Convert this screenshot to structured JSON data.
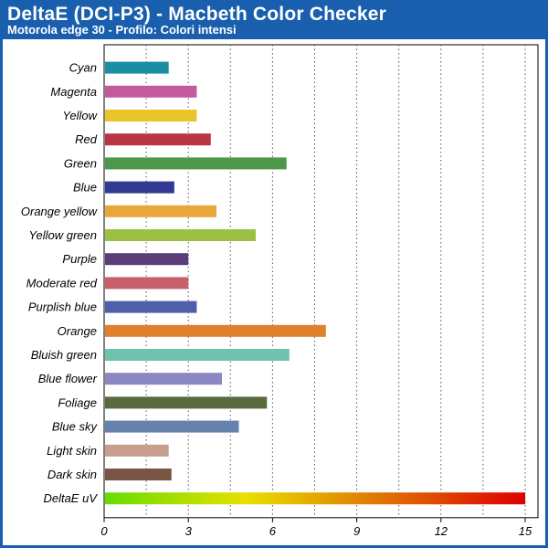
{
  "header": {
    "title": "DeltaE (DCI-P3) - Macbeth Color Checker",
    "subtitle": "Motorola edge 30 - Profilo: Colori intensi"
  },
  "chart_data": {
    "type": "bar",
    "orientation": "horizontal",
    "title": "DeltaE (DCI-P3) - Macbeth Color Checker",
    "subtitle": "Motorola edge 30 - Profilo: Colori intensi",
    "categories": [
      "Cyan",
      "Magenta",
      "Yellow",
      "Red",
      "Green",
      "Blue",
      "Orange yellow",
      "Yellow green",
      "Purple",
      "Moderate red",
      "Purplish blue",
      "Orange",
      "Bluish green",
      "Blue flower",
      "Foliage",
      "Blue sky",
      "Light skin",
      "Dark skin"
    ],
    "values": [
      2.3,
      3.3,
      3.3,
      3.8,
      6.5,
      2.5,
      4.0,
      5.4,
      3.0,
      3.0,
      3.3,
      7.9,
      6.6,
      4.2,
      5.8,
      4.8,
      2.3,
      2.4
    ],
    "colors": [
      "#1b8ea3",
      "#c45a9e",
      "#e9c42a",
      "#b83643",
      "#4c9848",
      "#323a93",
      "#e9a63a",
      "#9cc045",
      "#5b3d7c",
      "#c8606a",
      "#4f5fab",
      "#e07f2e",
      "#6fc2ad",
      "#8a87c3",
      "#596a3d",
      "#6582ad",
      "#c79f8c",
      "#7a5546"
    ],
    "scale_bar": {
      "label": "DeltaE uV",
      "value": 15,
      "gradient": [
        "#66dd00",
        "#e8e000",
        "#e07000",
        "#dd0000"
      ]
    },
    "xticks": [
      0,
      3,
      6,
      9,
      12,
      15
    ],
    "xlim": [
      0,
      15
    ],
    "xlabel": "",
    "ylabel": "",
    "grid": true
  }
}
